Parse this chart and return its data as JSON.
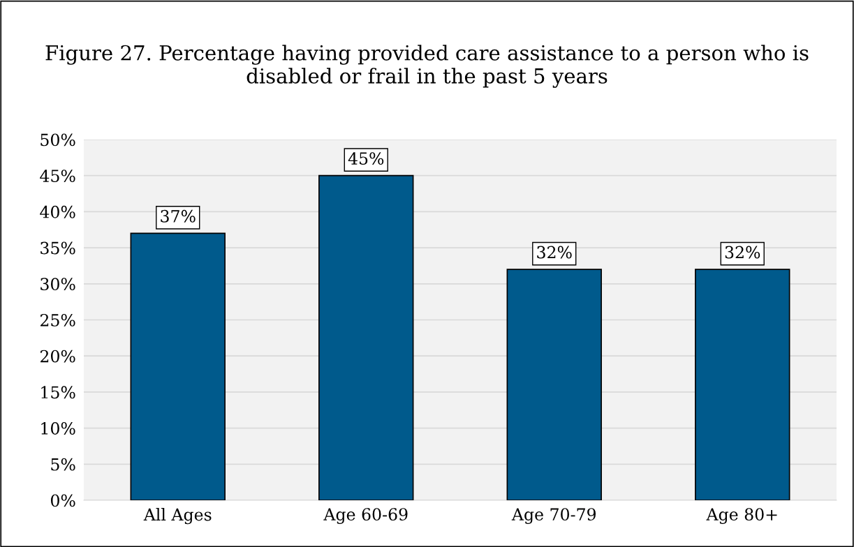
{
  "chart_data": {
    "type": "bar",
    "title": "Figure 27. Percentage having provided care assistance to a person who is disabled or frail in the past 5 years",
    "categories": [
      "All Ages",
      "Age 60-69",
      "Age 70-79",
      "Age 80+"
    ],
    "values": [
      37,
      45,
      32,
      32
    ],
    "color": "#005a8c",
    "value_labels": [
      "37%",
      "45%",
      "32%",
      "32%"
    ],
    "ylim": [
      0,
      50
    ],
    "yticks": [
      {
        "value": 0,
        "label": "0%"
      },
      {
        "value": 5,
        "label": "5%"
      },
      {
        "value": 10,
        "label": "10%"
      },
      {
        "value": 15,
        "label": "15%"
      },
      {
        "value": 20,
        "label": "20%"
      },
      {
        "value": 25,
        "label": "25%"
      },
      {
        "value": 30,
        "label": "30%"
      },
      {
        "value": 35,
        "label": "35%"
      },
      {
        "value": 40,
        "label": "40%"
      },
      {
        "value": 45,
        "label": "45%"
      },
      {
        "value": 50,
        "label": "50%"
      }
    ],
    "grid": "y"
  }
}
